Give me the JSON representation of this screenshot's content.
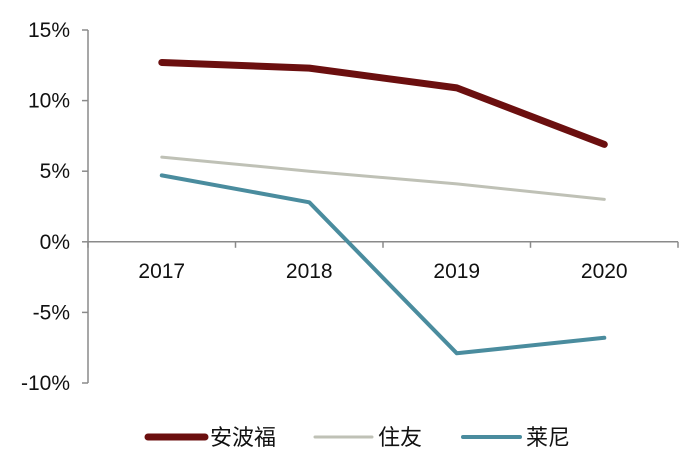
{
  "chart_data": {
    "type": "line",
    "x": [
      "2017",
      "2018",
      "2019",
      "2020"
    ],
    "series": [
      {
        "name": "安波福",
        "values": [
          12.7,
          12.3,
          10.9,
          6.9
        ],
        "color": "#6B0F0F"
      },
      {
        "name": "住友",
        "values": [
          6.0,
          5.0,
          4.1,
          3.0
        ],
        "color": "#BFC1B6"
      },
      {
        "name": "莱尼",
        "values": [
          4.7,
          2.8,
          -7.9,
          -6.8
        ],
        "color": "#4A8C9E"
      }
    ],
    "yticks": [
      "15%",
      "10%",
      "5%",
      "0%",
      "-5%",
      "-10%"
    ],
    "ytick_values": [
      15,
      10,
      5,
      0,
      -5,
      -10
    ],
    "ylim": [
      -10,
      15
    ],
    "xlabel": "",
    "ylabel": "",
    "title": "",
    "grid": false,
    "legend": "bottom"
  }
}
